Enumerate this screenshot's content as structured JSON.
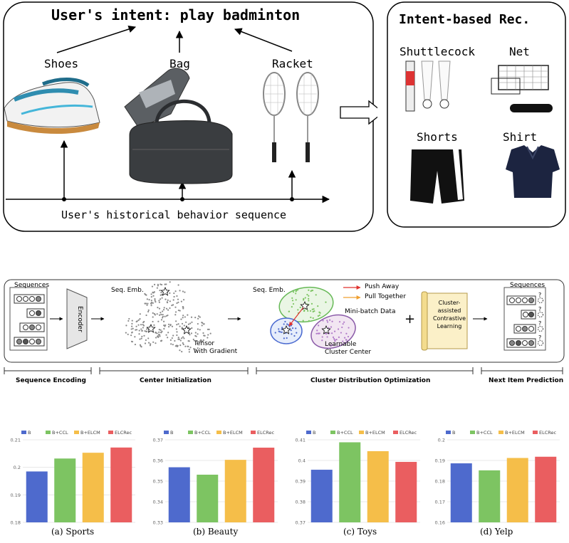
{
  "intent_panel": {
    "title": "User's intent: play badminton",
    "items": [
      "Shoes",
      "Bag",
      "Racket"
    ],
    "history_label": "User's historical behavior sequence"
  },
  "rec_panel": {
    "title": "Intent-based Rec.",
    "items": [
      "Shuttlecock",
      "Net",
      "Shorts",
      "Shirt"
    ]
  },
  "pipeline": {
    "sequences_left": "Sequences",
    "encoder": "Encoder",
    "seq_emb_1": "Seq. Emb.",
    "tensor_label": "Tensor",
    "tensor_label_2": "with Gradient",
    "seq_emb_2": "Seq. Emb.",
    "push_away": "Push Away",
    "pull_together": "Pull Together",
    "mini_batch": "Mini-batch Data",
    "learnable": "Learnable",
    "learnable_2": "Cluster Center",
    "plus": "+",
    "scroll_lines": [
      "Cluster-",
      "assisted",
      "Contrastive",
      "Learning"
    ],
    "sequences_right": "Sequences",
    "stages": [
      "Sequence Encoding",
      "Center Initialization",
      "Cluster Distribution Optimization",
      "Next Item Prediction"
    ]
  },
  "colors": {
    "B": "#4E6ACD",
    "B+CCL": "#7DC462",
    "B+ELCM": "#F5BE49",
    "ELCRec": "#EA5E60"
  },
  "chart_data": [
    {
      "type": "bar",
      "title": "(a) Sports",
      "legend": [
        "B",
        "B+CCL",
        "B+ELCM",
        "ELCRec"
      ],
      "legend_placement": "top",
      "values": [
        0.1985,
        0.2032,
        0.2053,
        0.2072
      ],
      "yticks": [
        "0.21",
        "0.2",
        "0.19",
        "0.18"
      ],
      "ylim": [
        0.18,
        0.21
      ],
      "grid": true
    },
    {
      "type": "bar",
      "title": "(b) Beauty",
      "legend": [
        "B",
        "B+CCL",
        "B+ELCM",
        "ELCRec"
      ],
      "legend_placement": "top",
      "values": [
        0.3567,
        0.3531,
        0.3603,
        0.3662
      ],
      "yticks": [
        "0.37",
        "0.36",
        "0.35",
        "0.34",
        "0.33"
      ],
      "ylim": [
        0.33,
        0.37
      ],
      "grid": true
    },
    {
      "type": "bar",
      "title": "(c) Toys",
      "legend": [
        "B",
        "B+CCL",
        "B+ELCM",
        "ELCRec"
      ],
      "legend_placement": "top",
      "values": [
        0.3955,
        0.4088,
        0.4045,
        0.3993
      ],
      "yticks": [
        "0.41",
        "0.4",
        "0.39",
        "0.38",
        "0.37"
      ],
      "ylim": [
        0.37,
        0.41
      ],
      "grid": true
    },
    {
      "type": "bar",
      "title": "(d) Yelp",
      "legend": [
        "B",
        "B+CCL",
        "B+ELCM",
        "ELCRec"
      ],
      "legend_placement": "top",
      "values": [
        0.1886,
        0.1852,
        0.1912,
        0.1918
      ],
      "yticks": [
        "0.2",
        "0.19",
        "0.18",
        "0.17",
        "0.16"
      ],
      "ylim": [
        0.16,
        0.2
      ],
      "grid": true
    }
  ]
}
